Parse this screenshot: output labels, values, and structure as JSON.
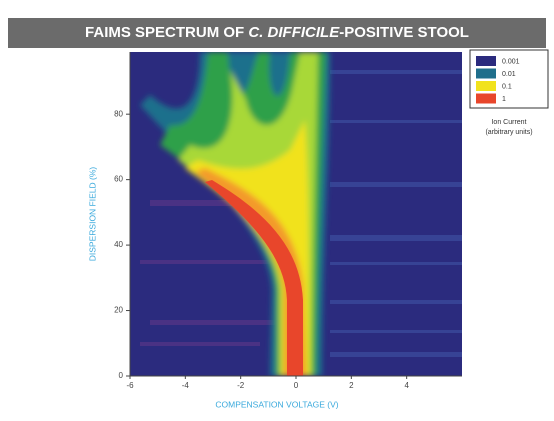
{
  "chart_data": {
    "type": "heatmap",
    "title_parts": [
      "FAIMS SPECTRUM OF ",
      "C. DIFFICILE",
      "-POSITIVE STOOL"
    ],
    "x_label": "COMPENSATION VOLTAGE (V)",
    "y_label": "DISPERSION FIELD (%)",
    "xlim": [
      -6,
      6
    ],
    "xticks": [
      -6,
      -4,
      -2,
      0,
      2,
      4
    ],
    "ylim": [
      0,
      99
    ],
    "yticks": [
      0,
      20,
      40,
      60,
      80
    ],
    "legend": {
      "title": "Ion Current",
      "subtitle": "(arbitrary units)",
      "levels": [
        {
          "value": 0.001,
          "color": "#2b2b7e"
        },
        {
          "value": 0.01,
          "color": "#1f6f8c"
        },
        {
          "value": 0.1,
          "color": "#f1e21c"
        },
        {
          "value": 1,
          "color": "#e8462b"
        }
      ]
    }
  }
}
